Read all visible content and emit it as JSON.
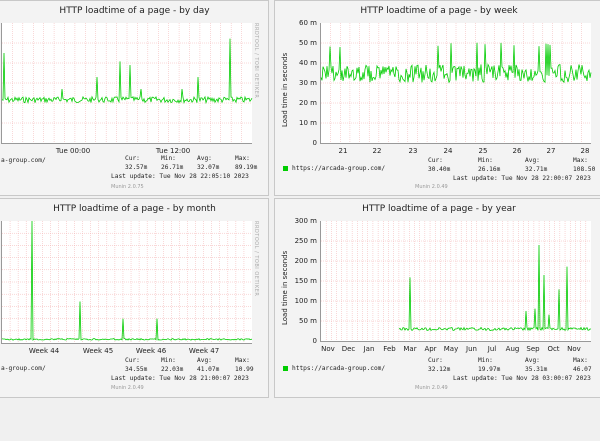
{
  "accent": "#00cc00",
  "panels": {
    "day": {
      "title": "HTTP loadtime of a page - by day",
      "rrd_label": "RRDTOOL / TOBI OETIKER",
      "x_ticks": [
        "Tue 00:00",
        "Tue 12:00"
      ],
      "legend_url": "a-group.com/",
      "cur_label": "Cur:",
      "cur": "32.57m",
      "min_label": "Min:",
      "min": "26.71m",
      "avg_label": "Avg:",
      "avg": "32.07m",
      "max_label": "Max:",
      "max": "89.19m",
      "last_update": "Last update: Tue Nov 28 22:05:10 2023",
      "munin": "Munin 2.0.75"
    },
    "week": {
      "title": "HTTP loadtime of a page - by week",
      "ylabel": "Load time in seconds",
      "rrd_label": "RRDTOOL / TOBI OETIKER",
      "y_ticks": [
        "60 m",
        "50 m",
        "40 m",
        "30 m",
        "20 m",
        "10 m",
        "0"
      ],
      "x_ticks": [
        "21",
        "22",
        "23",
        "24",
        "25",
        "26",
        "27",
        "28"
      ],
      "legend_url": "https://arcada-group.com/",
      "cur_label": "Cur:",
      "cur": "30.40m",
      "min_label": "Min:",
      "min": "26.16m",
      "avg_label": "Avg:",
      "avg": "32.71m",
      "max_label": "Max:",
      "max": "108.50",
      "last_update": "Last update: Tue Nov 28 22:00:07 2023",
      "munin": "Munin 2.0.49"
    },
    "month": {
      "title": "HTTP loadtime of a page - by month",
      "rrd_label": "RRDTOOL / TOBI OETIKER",
      "x_ticks": [
        "Week 44",
        "Week 45",
        "Week 46",
        "Week 47"
      ],
      "legend_url": "a-group.com/",
      "cur_label": "Cur:",
      "cur": "34.55m",
      "min_label": "Min:",
      "min": "22.03m",
      "avg_label": "Avg:",
      "avg": "41.07m",
      "max_label": "Max:",
      "max": "10.99",
      "last_update": "Last update: Tue Nov 28 21:00:07 2023",
      "munin": "Munin 2.0.49"
    },
    "year": {
      "title": "HTTP loadtime of a page - by year",
      "ylabel": "Load time in seconds",
      "rrd_label": "RRDTOOL / TOBI OETIKER",
      "y_ticks": [
        "300 m",
        "250 m",
        "200 m",
        "150 m",
        "100 m",
        "50 m",
        "0"
      ],
      "x_ticks": [
        "Nov",
        "Dec",
        "Jan",
        "Feb",
        "Mar",
        "Apr",
        "May",
        "Jun",
        "Jul",
        "Aug",
        "Sep",
        "Oct",
        "Nov"
      ],
      "legend_url": "https://arcada-group.com/",
      "cur_label": "Cur:",
      "cur": "32.12m",
      "min_label": "Min:",
      "min": "19.97m",
      "avg_label": "Avg:",
      "avg": "35.31m",
      "max_label": "Max:",
      "max": "46.07",
      "last_update": "Last update: Tue Nov 28 03:00:07 2023",
      "munin": "Munin 2.0.49"
    }
  }
}
